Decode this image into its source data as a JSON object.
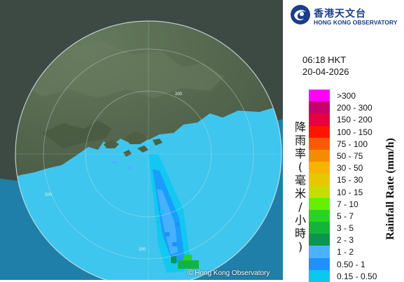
{
  "map": {
    "copyright": "Hong Kong Observatory",
    "copyright_symbol": "©",
    "range_ring_label": "200",
    "colors": {
      "sea": "#27aee2",
      "land": "#56684e",
      "coverage_sea": "#3ec6ee",
      "outside_land": "#3c4a43"
    }
  },
  "header": {
    "logo_icon": "hko-swirl-icon",
    "org_name_cn": "香港天文台",
    "org_name_en": "HONG KONG OBSERVATORY"
  },
  "timestamp": {
    "time": "06:18 HKT",
    "date": "20-04-2026"
  },
  "legend": {
    "title_cn": "降雨率(毫米/小時)",
    "title_en": "Rainfall Rate (mm/h)",
    "items": [
      {
        "label": ">300",
        "color": "#ff00ff"
      },
      {
        "label": "200 - 300",
        "color": "#c8006e"
      },
      {
        "label": "150 - 200",
        "color": "#e6003c"
      },
      {
        "label": "100 - 150",
        "color": "#ff1400"
      },
      {
        "label": "75 - 100",
        "color": "#fa5a00"
      },
      {
        "label": "50 - 75",
        "color": "#f58c00"
      },
      {
        "label": "30 - 50",
        "color": "#f5b400"
      },
      {
        "label": "15 - 30",
        "color": "#e6c800"
      },
      {
        "label": "10 - 15",
        "color": "#c8dc00"
      },
      {
        "label": "7 - 10",
        "color": "#64f000"
      },
      {
        "label": "5 - 7",
        "color": "#28d228"
      },
      {
        "label": "3 - 5",
        "color": "#14b43c"
      },
      {
        "label": "2 - 3",
        "color": "#0a9650"
      },
      {
        "label": "1 - 2",
        "color": "#4ab2ff"
      },
      {
        "label": "0.50 - 1",
        "color": "#1e90ff"
      },
      {
        "label": "0.15 - 0.50",
        "color": "#0ac8f0"
      }
    ]
  }
}
